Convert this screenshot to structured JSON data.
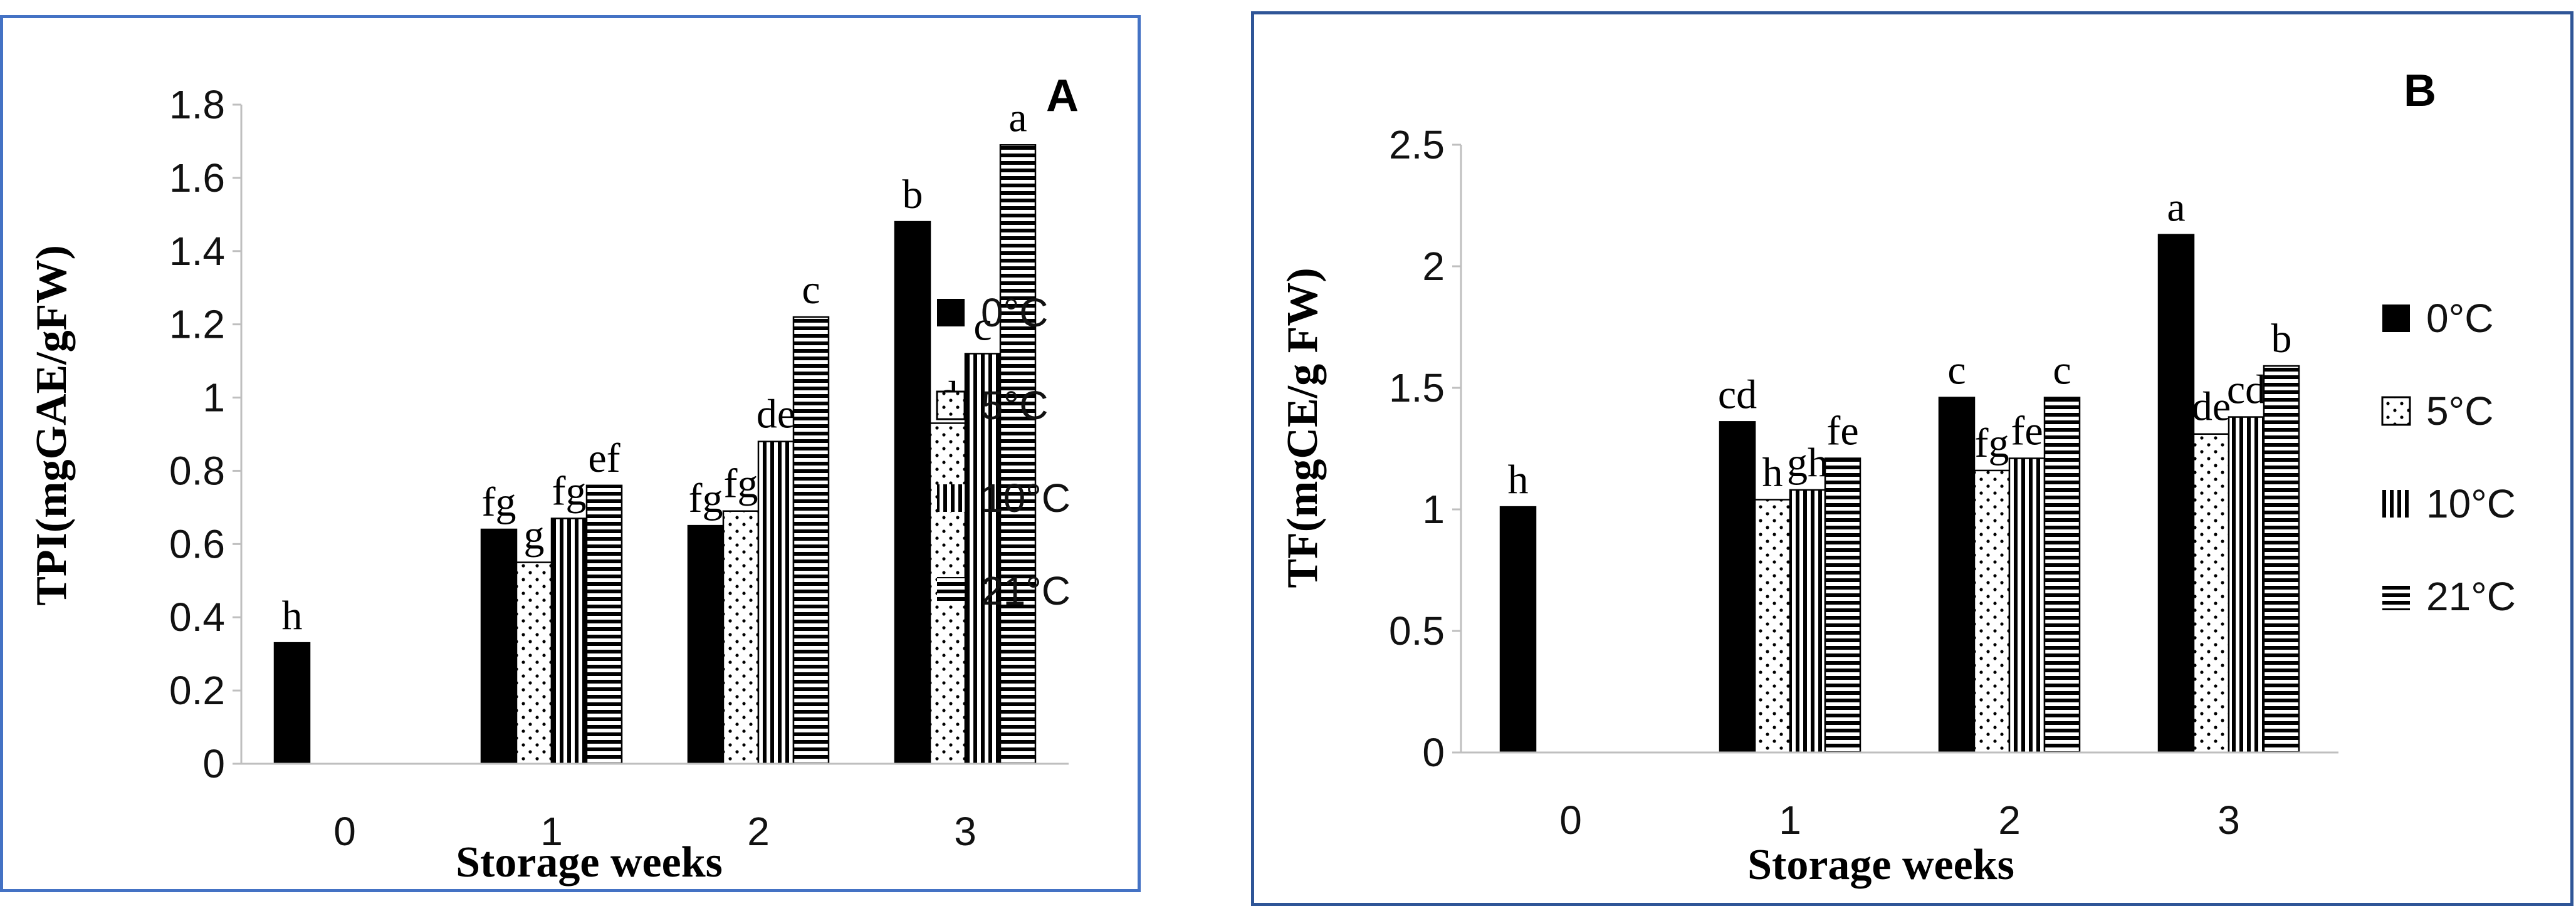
{
  "colors": {
    "panel_a_border": "#4472c4",
    "panel_b_border": "#2f5597",
    "bar_ink": "#000000"
  },
  "chart_data": [
    {
      "type": "bar",
      "panel_label": "A",
      "ylabel": "TPI(mgGAE/gFW)",
      "xlabel": "Storage weeks",
      "ylim": [
        0,
        1.8
      ],
      "ytick_labels": [
        "0",
        "0.2",
        "0.4",
        "0.6",
        "0.8",
        "1",
        "1.2",
        "1.4",
        "1.6",
        "1.8"
      ],
      "ytick_values": [
        0,
        0.2,
        0.4,
        0.6,
        0.8,
        1.0,
        1.2,
        1.4,
        1.6,
        1.8
      ],
      "categories": [
        "0",
        "1",
        "2",
        "3"
      ],
      "legend_position": "right",
      "series": [
        {
          "name": "0°C",
          "pattern": "solid",
          "values": [
            0.33,
            0.64,
            0.65,
            1.48
          ],
          "labels": [
            "h",
            "fg",
            "fg",
            "b"
          ]
        },
        {
          "name": "5°C",
          "pattern": "dotted",
          "values": [
            null,
            0.55,
            0.69,
            0.93
          ],
          "labels": [
            null,
            "g",
            "fg",
            "d"
          ]
        },
        {
          "name": "10°C",
          "pattern": "vertical-lines",
          "values": [
            null,
            0.67,
            0.88,
            1.12
          ],
          "labels": [
            null,
            "fg",
            "de",
            "c"
          ]
        },
        {
          "name": "21°C",
          "pattern": "horizontal-lines",
          "values": [
            null,
            0.76,
            1.22,
            1.69
          ],
          "labels": [
            null,
            "ef",
            "c",
            "a"
          ]
        }
      ]
    },
    {
      "type": "bar",
      "panel_label": "B",
      "ylabel": "TF(mgCE/g FW)",
      "xlabel": "Storage weeks",
      "ylim": [
        0,
        2.5
      ],
      "ytick_labels": [
        "0",
        "0.5",
        "1",
        "1.5",
        "2",
        "2.5"
      ],
      "ytick_values": [
        0,
        0.5,
        1.0,
        1.5,
        2.0,
        2.5
      ],
      "categories": [
        "0",
        "1",
        "2",
        "3"
      ],
      "legend_position": "right",
      "series": [
        {
          "name": "0°C",
          "pattern": "solid",
          "values": [
            1.01,
            1.36,
            1.46,
            2.13
          ],
          "labels": [
            "h",
            "cd",
            "c",
            "a"
          ]
        },
        {
          "name": "5°C",
          "pattern": "dotted",
          "values": [
            null,
            1.04,
            1.16,
            1.31
          ],
          "labels": [
            null,
            "h",
            "fg",
            "de"
          ]
        },
        {
          "name": "10°C",
          "pattern": "vertical-lines",
          "values": [
            null,
            1.08,
            1.21,
            1.38
          ],
          "labels": [
            null,
            "gh",
            "fe",
            "cd"
          ]
        },
        {
          "name": "21°C",
          "pattern": "horizontal-lines",
          "values": [
            null,
            1.21,
            1.46,
            1.59
          ],
          "labels": [
            null,
            "fe",
            "c",
            "b"
          ]
        }
      ]
    }
  ]
}
